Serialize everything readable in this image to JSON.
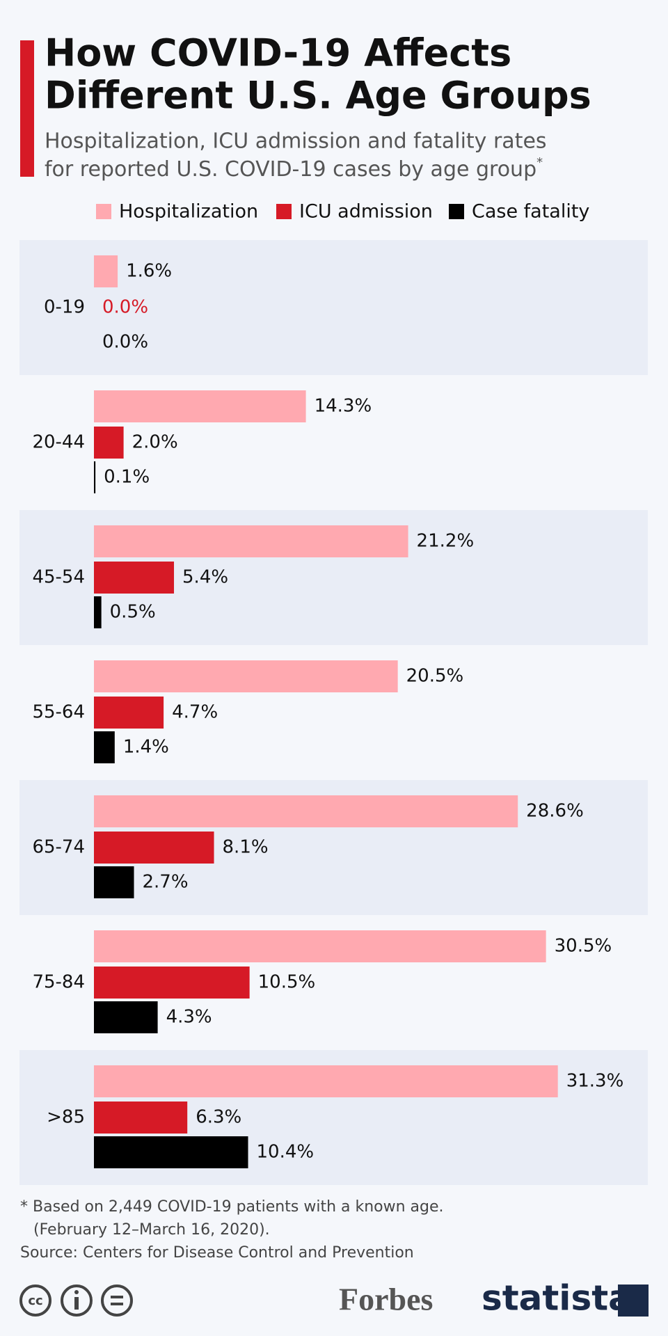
{
  "chart_data": {
    "type": "bar",
    "orientation": "horizontal",
    "title": [
      "How COVID-19 Affects",
      "Different U.S. Age Groups"
    ],
    "subtitle": [
      "Hospitalization, ICU admission and fatality rates",
      "for reported U.S. COVID-19 cases by age group"
    ],
    "subtitle_mark": "*",
    "categories": [
      "0-19",
      "20-44",
      "45-54",
      "55-64",
      "65-74",
      "75-84",
      ">85"
    ],
    "series": [
      {
        "name": "Hospitalization",
        "color": "#ffa9b0",
        "values": [
          1.6,
          14.3,
          21.2,
          20.5,
          28.6,
          30.5,
          31.3
        ],
        "value_labels": [
          "1.6%",
          "14.3%",
          "21.2%",
          "20.5%",
          "28.6%",
          "30.5%",
          "31.3%"
        ]
      },
      {
        "name": "ICU admission",
        "color": "#d61a26",
        "values": [
          0.0,
          2.0,
          5.4,
          4.7,
          8.1,
          10.5,
          6.3
        ],
        "value_labels": [
          "0.0%",
          "2.0%",
          "5.4%",
          "4.7%",
          "8.1%",
          "10.5%",
          "6.3%"
        ]
      },
      {
        "name": "Case fatality",
        "color": "#000000",
        "values": [
          0.0,
          0.1,
          0.5,
          1.4,
          2.7,
          4.3,
          10.4
        ],
        "value_labels": [
          "0.0%",
          "0.1%",
          "0.5%",
          "1.4%",
          "2.7%",
          "4.3%",
          "10.4%"
        ]
      }
    ],
    "legend": "top",
    "footnote": [
      "* Based on 2,449 COVID-19 patients with a known age.",
      "(February 12–March 16, 2020)."
    ],
    "source": "Source: Centers for Disease Control and Prevention",
    "license_icon": "cc",
    "logos": [
      "Forbes",
      "statista"
    ]
  }
}
